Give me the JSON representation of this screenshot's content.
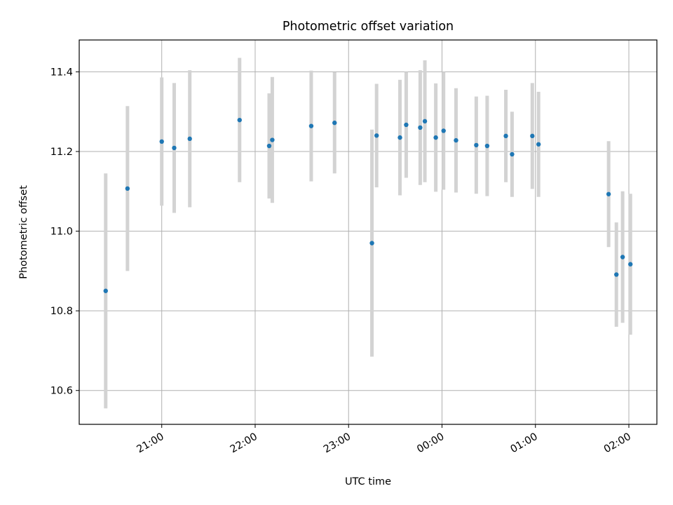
{
  "chart_data": {
    "type": "scatter",
    "title": "Photometric offset variation",
    "xlabel": "UTC time",
    "ylabel": "Photometric offset",
    "x_ticks": [
      "21:00",
      "22:00",
      "23:00",
      "00:00",
      "01:00",
      "02:00"
    ],
    "y_ticks": [
      "10.6",
      "10.8",
      "11.0",
      "11.2",
      "11.4"
    ],
    "ylim": [
      10.515,
      11.48
    ],
    "xlim": [
      "20:07",
      "02:18"
    ],
    "grid": true,
    "colors": {
      "point": "#1f77b4",
      "errorbar": "#d3d3d3",
      "grid": "#b0b0b0"
    },
    "points": [
      {
        "x": "20:24",
        "y": 10.85,
        "yerr": 0.295
      },
      {
        "x": "20:38",
        "y": 11.107,
        "yerr": 0.207
      },
      {
        "x": "21:00",
        "y": 11.225,
        "yerr": 0.161
      },
      {
        "x": "21:08",
        "y": 11.209,
        "yerr": 0.163
      },
      {
        "x": "21:18",
        "y": 11.232,
        "yerr": 0.172
      },
      {
        "x": "21:50",
        "y": 11.279,
        "yerr": 0.156
      },
      {
        "x": "22:09",
        "y": 11.214,
        "yerr": 0.132
      },
      {
        "x": "22:11",
        "y": 11.229,
        "yerr": 0.158
      },
      {
        "x": "22:36",
        "y": 11.264,
        "yerr": 0.139
      },
      {
        "x": "22:51",
        "y": 11.272,
        "yerr": 0.127
      },
      {
        "x": "23:15",
        "y": 10.97,
        "yerr": 0.285
      },
      {
        "x": "23:18",
        "y": 11.24,
        "yerr": 0.13
      },
      {
        "x": "23:33",
        "y": 11.235,
        "yerr": 0.145
      },
      {
        "x": "23:37",
        "y": 11.267,
        "yerr": 0.133
      },
      {
        "x": "23:46",
        "y": 11.26,
        "yerr": 0.144
      },
      {
        "x": "23:49",
        "y": 11.276,
        "yerr": 0.153
      },
      {
        "x": "23:56",
        "y": 11.235,
        "yerr": 0.136
      },
      {
        "x": "00:01",
        "y": 11.252,
        "yerr": 0.148
      },
      {
        "x": "00:09",
        "y": 11.228,
        "yerr": 0.131
      },
      {
        "x": "00:22",
        "y": 11.216,
        "yerr": 0.122
      },
      {
        "x": "00:29",
        "y": 11.214,
        "yerr": 0.126
      },
      {
        "x": "00:41",
        "y": 11.239,
        "yerr": 0.116
      },
      {
        "x": "00:45",
        "y": 11.193,
        "yerr": 0.107
      },
      {
        "x": "00:58",
        "y": 11.239,
        "yerr": 0.133
      },
      {
        "x": "01:02",
        "y": 11.218,
        "yerr": 0.132
      },
      {
        "x": "01:47",
        "y": 11.093,
        "yerr": 0.133
      },
      {
        "x": "01:52",
        "y": 10.891,
        "yerr": 0.131
      },
      {
        "x": "01:56",
        "y": 10.935,
        "yerr": 0.165
      },
      {
        "x": "02:01",
        "y": 10.917,
        "yerr": 0.177
      }
    ]
  }
}
